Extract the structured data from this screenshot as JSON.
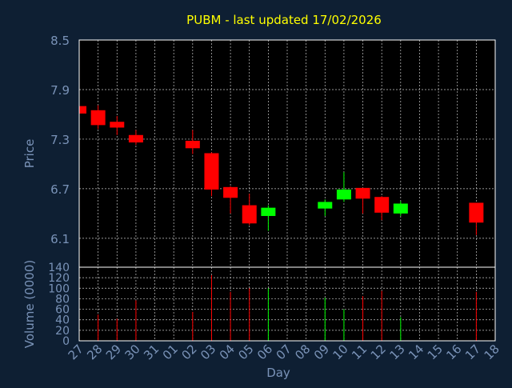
{
  "chart_data": {
    "type": "candlestick",
    "title": "PUBM - last updated 17/02/2026",
    "xlabel": "Day",
    "price_panel": {
      "ylabel": "Price",
      "ylim": [
        5.75,
        8.5
      ],
      "yticks": [
        "8.5",
        "7.9",
        "7.3",
        "6.7",
        "6.1"
      ],
      "ytick_values": [
        8.5,
        7.9,
        7.3,
        6.7,
        6.1
      ],
      "grid": true
    },
    "volume_panel": {
      "ylabel": "Volume (0000)",
      "ylim": [
        0,
        140
      ],
      "yticks": [
        "140",
        "120",
        "100",
        "80",
        "60",
        "40",
        "20",
        "0"
      ],
      "ytick_values": [
        140,
        120,
        100,
        80,
        60,
        40,
        20,
        0
      ],
      "grid": true
    },
    "x_ticks": [
      "27",
      "28",
      "29",
      "30",
      "31",
      "01",
      "02",
      "03",
      "04",
      "05",
      "06",
      "07",
      "08",
      "09",
      "10",
      "11",
      "12",
      "13",
      "14",
      "15",
      "16",
      "17",
      "18"
    ],
    "candles": [
      {
        "day": "27",
        "open": 7.7,
        "close": 7.61,
        "high": 7.7,
        "low": 7.61,
        "volume": 0
      },
      {
        "day": "28",
        "open": 7.65,
        "close": 7.47,
        "high": 7.71,
        "low": 7.42,
        "volume": 50
      },
      {
        "day": "29",
        "open": 7.51,
        "close": 7.44,
        "high": 7.58,
        "low": 7.35,
        "volume": 42
      },
      {
        "day": "30",
        "open": 7.35,
        "close": 7.26,
        "high": 7.41,
        "low": 7.23,
        "volume": 77
      },
      {
        "day": "02",
        "open": 7.28,
        "close": 7.19,
        "high": 7.41,
        "low": 7.12,
        "volume": 55
      },
      {
        "day": "03",
        "open": 7.13,
        "close": 6.69,
        "high": 7.14,
        "low": 6.61,
        "volume": 125
      },
      {
        "day": "04",
        "open": 6.72,
        "close": 6.59,
        "high": 6.73,
        "low": 6.4,
        "volume": 93
      },
      {
        "day": "05",
        "open": 6.5,
        "close": 6.28,
        "high": 6.64,
        "low": 6.26,
        "volume": 100
      },
      {
        "day": "06",
        "open": 6.37,
        "close": 6.47,
        "high": 6.5,
        "low": 6.19,
        "volume": 100
      },
      {
        "day": "09",
        "open": 6.46,
        "close": 6.54,
        "high": 6.57,
        "low": 6.37,
        "volume": 82
      },
      {
        "day": "10",
        "open": 6.57,
        "close": 6.69,
        "high": 6.9,
        "low": 6.54,
        "volume": 60
      },
      {
        "day": "11",
        "open": 6.71,
        "close": 6.58,
        "high": 6.71,
        "low": 6.4,
        "volume": 85
      },
      {
        "day": "12",
        "open": 6.6,
        "close": 6.41,
        "high": 6.61,
        "low": 6.32,
        "volume": 95
      },
      {
        "day": "13",
        "open": 6.4,
        "close": 6.52,
        "high": 6.55,
        "low": 6.37,
        "volume": 45
      },
      {
        "day": "17",
        "open": 6.53,
        "close": 6.29,
        "high": 6.53,
        "low": 6.14,
        "volume": 93
      }
    ],
    "colors": {
      "background": "#0e1f33",
      "plot_background": "#000000",
      "axis_text": "#7a93b8",
      "title": "#ffff00",
      "grid": "#c8c8c8",
      "up": "#00ff00",
      "down": "#ff0000"
    }
  }
}
